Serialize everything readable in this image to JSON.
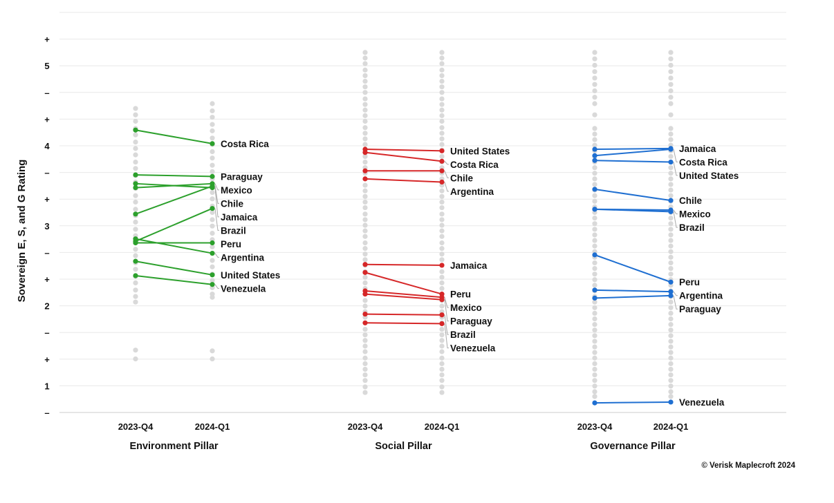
{
  "chart_data": {
    "type": "line",
    "ylabel": "Sovereign E, S, and G Rating",
    "y_ticks": [
      "+",
      "5",
      "–",
      "+",
      "4",
      "–",
      "+",
      "3",
      "–",
      "+",
      "2",
      "–",
      "+",
      "1",
      "–"
    ],
    "ylim": [
      0.5,
      5.5
    ],
    "grid": true,
    "credit": "© Verisk Maplecroft 2024",
    "panels": [
      {
        "name": "Environment Pillar",
        "color": "#2ca02c",
        "x": [
          "2023-Q4",
          "2024-Q1"
        ],
        "series": [
          {
            "name": "Costa Rica",
            "values": [
              4.03,
              3.86
            ]
          },
          {
            "name": "Paraguay",
            "values": [
              3.47,
              3.45
            ]
          },
          {
            "name": "Jamaica",
            "values": [
              3.36,
              3.31
            ]
          },
          {
            "name": "Mexico",
            "values": [
              3.31,
              3.36
            ]
          },
          {
            "name": "Chile",
            "values": [
              2.98,
              3.33
            ]
          },
          {
            "name": "Brazil",
            "values": [
              2.64,
              3.05
            ]
          },
          {
            "name": "Peru",
            "values": [
              2.62,
              2.62
            ]
          },
          {
            "name": "Argentina",
            "values": [
              2.67,
              2.49
            ]
          },
          {
            "name": "United States",
            "values": [
              2.39,
              2.22
            ]
          },
          {
            "name": "Venezuela",
            "values": [
              2.21,
              2.1
            ]
          }
        ],
        "background_values": {
          "x1": [
            4.3,
            4.22,
            4.14,
            4.05,
            3.97,
            3.88,
            3.8,
            3.72,
            3.63,
            3.55,
            3.46,
            3.38,
            3.3,
            3.21,
            3.13,
            3.04,
            2.96,
            2.88,
            2.79,
            2.71,
            2.62,
            2.54,
            2.46,
            2.37,
            2.29,
            2.2,
            2.12,
            2.03,
            1.95,
            1.88,
            1.28,
            1.17
          ],
          "x2": [
            4.36,
            4.27,
            4.19,
            4.1,
            4.02,
            3.93,
            3.85,
            3.76,
            3.68,
            3.59,
            3.51,
            3.42,
            3.34,
            3.25,
            3.17,
            3.08,
            3.0,
            2.91,
            2.83,
            2.74,
            2.66,
            2.57,
            2.49,
            2.4,
            2.32,
            2.23,
            2.15,
            2.06,
            1.98,
            1.94,
            1.27,
            1.17
          ]
        }
      },
      {
        "name": "Social Pillar",
        "color": "#d62728",
        "x": [
          "2023-Q4",
          "2024-Q1"
        ],
        "series": [
          {
            "name": "United States",
            "values": [
              3.79,
              3.77
            ]
          },
          {
            "name": "Costa Rica",
            "values": [
              3.75,
              3.64
            ]
          },
          {
            "name": "Chile",
            "values": [
              3.52,
              3.52
            ]
          },
          {
            "name": "Argentina",
            "values": [
              3.42,
              3.38
            ]
          },
          {
            "name": "Jamaica",
            "values": [
              2.35,
              2.34
            ]
          },
          {
            "name": "Peru",
            "values": [
              2.25,
              1.98
            ]
          },
          {
            "name": "Mexico",
            "values": [
              2.02,
              1.94
            ]
          },
          {
            "name": "Paraguay",
            "values": [
              1.98,
              1.91
            ]
          },
          {
            "name": "Brazil",
            "values": [
              1.73,
              1.72
            ]
          },
          {
            "name": "Venezuela",
            "values": [
              1.62,
              1.61
            ]
          }
        ],
        "background_values": {
          "x1": [
            5.0,
            4.93,
            4.86,
            4.78,
            4.71,
            4.64,
            4.57,
            4.5,
            4.42,
            4.35,
            4.28,
            4.21,
            4.14,
            4.06,
            3.99,
            3.92,
            3.85,
            3.78,
            3.7,
            3.63,
            3.56,
            3.49,
            3.42,
            3.34,
            3.27,
            3.2,
            3.13,
            3.06,
            2.98,
            2.91,
            2.84,
            2.77,
            2.7,
            2.62,
            2.55,
            2.48,
            2.41,
            2.34,
            2.26,
            2.19,
            2.12,
            2.05,
            1.98,
            1.9,
            1.83,
            1.76,
            1.69,
            1.62,
            1.54,
            1.47,
            1.4,
            1.33,
            1.26,
            1.18,
            1.11,
            1.04,
            0.97,
            0.9,
            0.82,
            0.75
          ],
          "x2": [
            5.0,
            4.93,
            4.86,
            4.78,
            4.71,
            4.64,
            4.57,
            4.5,
            4.42,
            4.35,
            4.28,
            4.21,
            4.14,
            4.06,
            3.99,
            3.92,
            3.85,
            3.78,
            3.7,
            3.63,
            3.56,
            3.49,
            3.42,
            3.34,
            3.27,
            3.2,
            3.13,
            3.06,
            2.98,
            2.91,
            2.84,
            2.77,
            2.7,
            2.62,
            2.55,
            2.48,
            2.41,
            2.34,
            2.26,
            2.19,
            2.12,
            2.05,
            1.98,
            1.9,
            1.83,
            1.76,
            1.69,
            1.62,
            1.54,
            1.47,
            1.4,
            1.33,
            1.26,
            1.18,
            1.11,
            1.04,
            0.97,
            0.9,
            0.82,
            0.75
          ]
        }
      },
      {
        "name": "Governance Pillar",
        "color": "#1f6fd1",
        "x": [
          "2023-Q4",
          "2024-Q1"
        ],
        "series": [
          {
            "name": "Costa Rica",
            "values": [
              3.71,
              3.79
            ]
          },
          {
            "name": "Jamaica",
            "values": [
              3.79,
              3.8
            ]
          },
          {
            "name": "United States",
            "values": [
              3.65,
              3.63
            ]
          },
          {
            "name": "Chile",
            "values": [
              3.29,
              3.15
            ]
          },
          {
            "name": "Mexico",
            "values": [
              3.04,
              3.03
            ]
          },
          {
            "name": "Brazil",
            "values": [
              3.04,
              3.01
            ]
          },
          {
            "name": "Peru",
            "values": [
              2.47,
              2.13
            ]
          },
          {
            "name": "Argentina",
            "values": [
              2.03,
              2.01
            ]
          },
          {
            "name": "Paraguay",
            "values": [
              1.93,
              1.96
            ]
          },
          {
            "name": "Venezuela",
            "values": [
              0.62,
              0.63
            ]
          }
        ],
        "background_values": {
          "x1": [
            5.0,
            4.92,
            4.84,
            4.76,
            4.68,
            4.6,
            4.52,
            4.44,
            4.36,
            4.22,
            4.05,
            3.98,
            3.91,
            3.84,
            3.77,
            3.7,
            3.63,
            3.56,
            3.49,
            3.42,
            3.35,
            3.28,
            3.21,
            3.14,
            3.07,
            3.0,
            2.93,
            2.86,
            2.79,
            2.72,
            2.65,
            2.58,
            2.51,
            2.44,
            2.37,
            2.3,
            2.23,
            2.16,
            2.09,
            2.02,
            1.95,
            1.88,
            1.81,
            1.74,
            1.67,
            1.6,
            1.53,
            1.46,
            1.39,
            1.32,
            1.25,
            1.18,
            1.11,
            1.04,
            0.97,
            0.9,
            0.83,
            0.76,
            0.7
          ],
          "x2": [
            5.0,
            4.92,
            4.84,
            4.76,
            4.68,
            4.6,
            4.52,
            4.44,
            4.36,
            4.22,
            4.05,
            3.98,
            3.91,
            3.84,
            3.77,
            3.7,
            3.63,
            3.56,
            3.49,
            3.42,
            3.35,
            3.28,
            3.21,
            3.14,
            3.07,
            3.0,
            2.93,
            2.86,
            2.79,
            2.72,
            2.65,
            2.58,
            2.51,
            2.44,
            2.37,
            2.3,
            2.23,
            2.16,
            2.09,
            2.02,
            1.95,
            1.88,
            1.81,
            1.74,
            1.67,
            1.6,
            1.53,
            1.46,
            1.39,
            1.32,
            1.25,
            1.18,
            1.11,
            1.04,
            0.97,
            0.9,
            0.83,
            0.76,
            0.7
          ]
        }
      }
    ]
  }
}
